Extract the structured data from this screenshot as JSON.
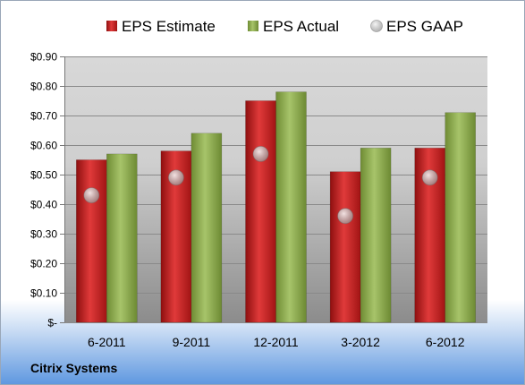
{
  "company": "Citrix Systems",
  "chart_data": {
    "type": "bar",
    "categories": [
      "6-2011",
      "9-2011",
      "12-2011",
      "3-2012",
      "6-2012"
    ],
    "series": [
      {
        "name": "EPS Estimate",
        "type": "bar",
        "color": "#c41e1e",
        "values": [
          0.55,
          0.58,
          0.75,
          0.51,
          0.59
        ]
      },
      {
        "name": "EPS Actual",
        "type": "bar",
        "color": "#8aab4a",
        "values": [
          0.57,
          0.64,
          0.78,
          0.59,
          0.71
        ]
      },
      {
        "name": "EPS GAAP",
        "type": "scatter",
        "color": "#b0b0b0",
        "values": [
          0.43,
          0.49,
          0.57,
          0.36,
          0.49
        ]
      }
    ],
    "ylim": [
      0,
      0.9
    ],
    "yticks": [
      0,
      0.1,
      0.2,
      0.3,
      0.4,
      0.5,
      0.6,
      0.7,
      0.8,
      0.9
    ],
    "ytick_labels": [
      "$-",
      "$0.10",
      "$0.20",
      "$0.30",
      "$0.40",
      "$0.50",
      "$0.60",
      "$0.70",
      "$0.80",
      "$0.90"
    ],
    "grid": true,
    "legend": "top"
  }
}
